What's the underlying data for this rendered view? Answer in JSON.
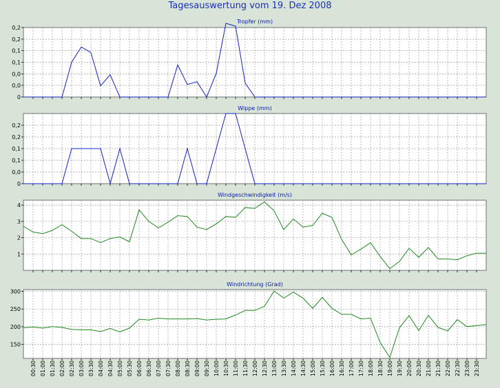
{
  "window": {
    "title": "Tagesauswertung vom 19. Dez 2008"
  },
  "colors": {
    "background": "#d8e4d8",
    "rain_series": "#1020c8",
    "wind_series": "#1e8a1e",
    "title": "#1c2fb8"
  },
  "chart_data": [
    {
      "type": "line",
      "title": "Tropfer (mm)",
      "ylim": [
        0,
        0.25
      ],
      "yticks": [
        0,
        0.042,
        0.083,
        0.125,
        0.167,
        0.208,
        0.25
      ],
      "ytick_labels": [
        "0",
        "0,0",
        "0,0",
        "0,1",
        "0,1",
        "0,2",
        "0,2"
      ],
      "grid": true,
      "x": [
        "00:00",
        "00:30",
        "01:00",
        "01:30",
        "02:00",
        "02:30",
        "03:00",
        "03:30",
        "04:00",
        "04:30",
        "05:00",
        "05:30",
        "06:00",
        "06:30",
        "07:00",
        "07:30",
        "08:00",
        "08:30",
        "09:00",
        "09:30",
        "10:00",
        "10:30",
        "11:00",
        "11:30",
        "12:00",
        "12:30",
        "13:00",
        "13:30",
        "14:00",
        "14:30",
        "15:00",
        "15:30",
        "16:00",
        "16:30",
        "17:00",
        "17:30",
        "18:00",
        "18:30",
        "19:00",
        "19:30",
        "20:00",
        "20:30",
        "21:00",
        "21:30",
        "22:00",
        "22:30",
        "23:00",
        "23:30",
        "24:00"
      ],
      "series": [
        {
          "values": [
            0,
            0,
            0,
            0,
            0,
            0.125,
            0.18,
            0.16,
            0.04,
            0.08,
            0,
            0,
            0,
            0,
            0,
            0,
            0.115,
            0.045,
            0.055,
            0,
            0.085,
            0.265,
            0.255,
            0.05,
            0,
            0,
            0,
            0,
            0,
            0,
            0,
            0,
            0,
            0,
            0,
            0,
            0,
            0,
            0,
            0,
            0,
            0,
            0,
            0,
            0,
            0,
            0,
            0,
            0
          ]
        }
      ]
    },
    {
      "type": "line",
      "title": "Wippe (mm)",
      "ylim": [
        0,
        0.3
      ],
      "yticks": [
        0,
        0.05,
        0.1,
        0.15,
        0.2,
        0.25,
        0.3
      ],
      "ytick_labels": [
        "0",
        "0,0",
        "0,1",
        "0,1",
        "0,2",
        "0,2",
        ""
      ],
      "grid": true,
      "x": [
        "00:00",
        "00:30",
        "01:00",
        "01:30",
        "02:00",
        "02:30",
        "03:00",
        "03:30",
        "04:00",
        "04:30",
        "05:00",
        "05:30",
        "06:00",
        "06:30",
        "07:00",
        "07:30",
        "08:00",
        "08:30",
        "09:00",
        "09:30",
        "10:00",
        "10:30",
        "11:00",
        "11:30",
        "12:00",
        "12:30",
        "13:00",
        "13:30",
        "14:00",
        "14:30",
        "15:00",
        "15:30",
        "16:00",
        "16:30",
        "17:00",
        "17:30",
        "18:00",
        "18:30",
        "19:00",
        "19:30",
        "20:00",
        "20:30",
        "21:00",
        "21:30",
        "22:00",
        "22:30",
        "23:00",
        "23:30",
        "24:00"
      ],
      "series": [
        {
          "values": [
            0,
            0,
            0,
            0,
            0,
            0.15,
            0.15,
            0.15,
            0.15,
            0,
            0.15,
            0,
            0,
            0,
            0,
            0,
            0,
            0.15,
            0,
            0,
            0.15,
            0.3,
            0.3,
            0.15,
            0,
            0,
            0,
            0,
            0,
            0,
            0,
            0,
            0,
            0,
            0,
            0,
            0,
            0,
            0,
            0,
            0,
            0,
            0,
            0,
            0,
            0,
            0,
            0,
            0
          ]
        }
      ]
    },
    {
      "type": "line",
      "title": "Windgeschwindigkeit (m/s)",
      "ylim": [
        0,
        4.3
      ],
      "yticks": [
        1,
        2,
        3,
        4
      ],
      "ytick_labels": [
        "1",
        "2",
        "3",
        "4"
      ],
      "grid": true,
      "x": [
        "00:00",
        "00:30",
        "01:00",
        "01:30",
        "02:00",
        "02:30",
        "03:00",
        "03:30",
        "04:00",
        "04:30",
        "05:00",
        "05:30",
        "06:00",
        "06:30",
        "07:00",
        "07:30",
        "08:00",
        "08:30",
        "09:00",
        "09:30",
        "10:00",
        "10:30",
        "11:00",
        "11:30",
        "12:00",
        "12:30",
        "13:00",
        "13:30",
        "14:00",
        "14:30",
        "15:00",
        "15:30",
        "16:00",
        "16:30",
        "17:00",
        "17:30",
        "18:00",
        "18:30",
        "19:00",
        "19:30",
        "20:00",
        "20:30",
        "21:00",
        "21:30",
        "22:00",
        "22:30",
        "23:00",
        "23:30",
        "24:00"
      ],
      "series": [
        {
          "values": [
            2.7,
            2.35,
            2.25,
            2.45,
            2.8,
            2.4,
            1.95,
            1.95,
            1.7,
            1.95,
            2.05,
            1.75,
            3.7,
            3.0,
            2.6,
            2.95,
            3.35,
            3.3,
            2.65,
            2.5,
            2.85,
            3.3,
            3.25,
            3.85,
            3.8,
            4.2,
            3.65,
            2.5,
            3.15,
            2.65,
            2.75,
            3.5,
            3.25,
            1.9,
            0.95,
            1.3,
            1.7,
            0.85,
            0.1,
            0.55,
            1.35,
            0.8,
            1.4,
            0.7,
            0.7,
            0.65,
            0.9,
            1.05,
            1.05
          ]
        }
      ]
    },
    {
      "type": "line",
      "title": "Windrichtung (Grad)",
      "ylim": [
        110,
        305
      ],
      "yticks": [
        150,
        200,
        250,
        300
      ],
      "ytick_labels": [
        "150",
        "200",
        "250",
        "300"
      ],
      "grid": true,
      "x": [
        "00:00",
        "00:30",
        "01:00",
        "01:30",
        "02:00",
        "02:30",
        "03:00",
        "03:30",
        "04:00",
        "04:30",
        "05:00",
        "05:30",
        "06:00",
        "06:30",
        "07:00",
        "07:30",
        "08:00",
        "08:30",
        "09:00",
        "09:30",
        "10:00",
        "10:30",
        "11:00",
        "11:30",
        "12:00",
        "12:30",
        "13:00",
        "13:30",
        "14:00",
        "14:30",
        "15:00",
        "15:30",
        "16:00",
        "16:30",
        "17:00",
        "17:30",
        "18:00",
        "18:30",
        "19:00",
        "19:30",
        "20:00",
        "20:30",
        "21:00",
        "21:30",
        "22:00",
        "22:30",
        "23:00",
        "23:30",
        "24:00"
      ],
      "series": [
        {
          "values": [
            197,
            199,
            196,
            200,
            198,
            192,
            191,
            191,
            186,
            195,
            185,
            196,
            221,
            219,
            224,
            222,
            222,
            222,
            223,
            219,
            221,
            222,
            233,
            246,
            246,
            258,
            301,
            281,
            298,
            281,
            252,
            283,
            252,
            235,
            235,
            222,
            224,
            155,
            113,
            197,
            231,
            189,
            232,
            198,
            188,
            220,
            200,
            203,
            206
          ]
        }
      ]
    }
  ],
  "x_axis": {
    "tick_labels": [
      "00:30",
      "01:00",
      "01:30",
      "02:00",
      "02:30",
      "03:00",
      "03:30",
      "04:00",
      "04:30",
      "05:00",
      "05:30",
      "06:00",
      "06:30",
      "07:00",
      "07:30",
      "08:00",
      "08:30",
      "09:00",
      "09:30",
      "10:00",
      "10:30",
      "11:00",
      "11:30",
      "12:00",
      "12:30",
      "13:00",
      "13:30",
      "14:00",
      "14:30",
      "15:00",
      "15:30",
      "16:00",
      "16:30",
      "17:00",
      "17:30",
      "18:00",
      "18:30",
      "19:00",
      "19:30",
      "20:00",
      "20:30",
      "21:00",
      "21:30",
      "22:00",
      "22:30",
      "23:00",
      "23:30"
    ]
  }
}
